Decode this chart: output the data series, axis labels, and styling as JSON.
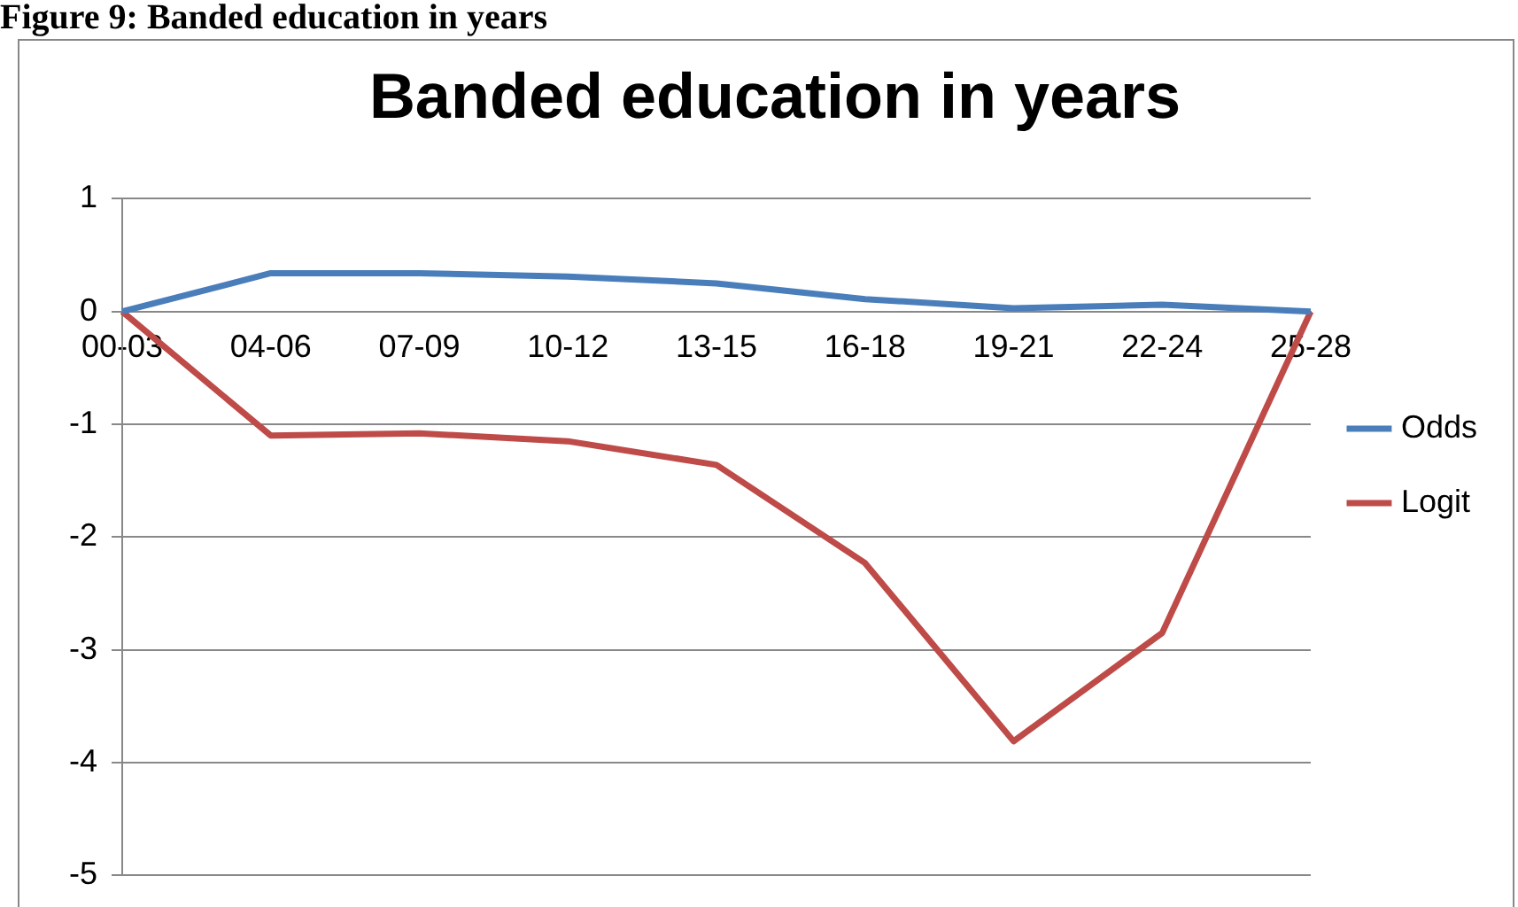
{
  "chart_data": {
    "type": "line",
    "title": "Banded education in years",
    "annotations": [
      "Figure 9: Banded education in years"
    ],
    "categories": [
      "00-03",
      "04-06",
      "07-09",
      "10-12",
      "13-15",
      "16-18",
      "19-21",
      "22-24",
      "25-28"
    ],
    "series": [
      {
        "name": "Odds",
        "color": "#4a7ebb",
        "values": [
          0,
          0.34,
          0.34,
          0.31,
          0.25,
          0.11,
          0.03,
          0.06,
          0
        ]
      },
      {
        "name": "Logit",
        "color": "#be4b48",
        "values": [
          0,
          -1.1,
          -1.08,
          -1.15,
          -1.36,
          -2.23,
          -3.81,
          -2.85,
          0
        ]
      }
    ],
    "ylim": [
      -5,
      1
    ],
    "yticks": [
      -5,
      -4,
      -3,
      -2,
      -1,
      0,
      1
    ],
    "grid": "y",
    "legend": "right",
    "marker": "none",
    "line_style": "solid"
  }
}
